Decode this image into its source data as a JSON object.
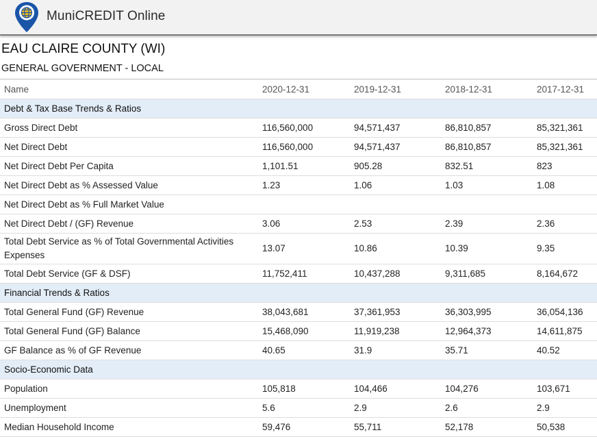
{
  "header": {
    "app_title": "MuniCREDIT Online",
    "logo_icon": "globe-map-pin-icon"
  },
  "entity": {
    "name": "EAU CLAIRE COUNTY (WI)",
    "category": "GENERAL GOVERNMENT - LOCAL"
  },
  "table": {
    "columns": [
      "Name",
      "2020-12-31",
      "2019-12-31",
      "2018-12-31",
      "2017-12-31"
    ],
    "rows": [
      {
        "type": "section",
        "name": "Debt & Tax Base Trends & Ratios"
      },
      {
        "type": "data",
        "name": "Gross Direct Debt",
        "values": [
          "116,560,000",
          "94,571,437",
          "86,810,857",
          "85,321,361"
        ]
      },
      {
        "type": "data",
        "name": "Net Direct Debt",
        "values": [
          "116,560,000",
          "94,571,437",
          "86,810,857",
          "85,321,361"
        ]
      },
      {
        "type": "data",
        "name": "Net Direct Debt Per Capita",
        "values": [
          "1,101.51",
          "905.28",
          "832.51",
          "823"
        ]
      },
      {
        "type": "data",
        "name": "Net Direct Debt as % Assessed Value",
        "values": [
          "1.23",
          "1.06",
          "1.03",
          "1.08"
        ]
      },
      {
        "type": "data",
        "name": "Net Direct Debt as % Full Market Value",
        "values": [
          "",
          "",
          "",
          ""
        ]
      },
      {
        "type": "data",
        "name": "Net Direct Debt / (GF) Revenue",
        "values": [
          "3.06",
          "2.53",
          "2.39",
          "2.36"
        ]
      },
      {
        "type": "data",
        "tall": true,
        "name": "Total Debt Service as % of Total Governmental Activities Expenses",
        "values": [
          "13.07",
          "10.86",
          "10.39",
          "9.35"
        ]
      },
      {
        "type": "data",
        "name": "Total Debt Service (GF & DSF)",
        "values": [
          "11,752,411",
          "10,437,288",
          "9,311,685",
          "8,164,672"
        ]
      },
      {
        "type": "section",
        "name": "Financial Trends & Ratios"
      },
      {
        "type": "data",
        "name": "Total General Fund (GF) Revenue",
        "values": [
          "38,043,681",
          "37,361,953",
          "36,303,995",
          "36,054,136"
        ]
      },
      {
        "type": "data",
        "name": "Total General Fund (GF) Balance",
        "values": [
          "15,468,090",
          "11,919,238",
          "12,964,373",
          "14,611,875"
        ]
      },
      {
        "type": "data",
        "name": "GF Balance as % of GF Revenue",
        "values": [
          "40.65",
          "31.9",
          "35.71",
          "40.52"
        ]
      },
      {
        "type": "section",
        "name": "Socio-Economic Data"
      },
      {
        "type": "data",
        "name": "Population",
        "values": [
          "105,818",
          "104,466",
          "104,276",
          "103,671"
        ]
      },
      {
        "type": "data",
        "name": "Unemployment",
        "values": [
          "5.6",
          "2.9",
          "2.6",
          "2.9"
        ]
      },
      {
        "type": "data",
        "name": "Median Household Income",
        "values": [
          "59,476",
          "55,711",
          "52,178",
          "50,538"
        ]
      }
    ]
  }
}
